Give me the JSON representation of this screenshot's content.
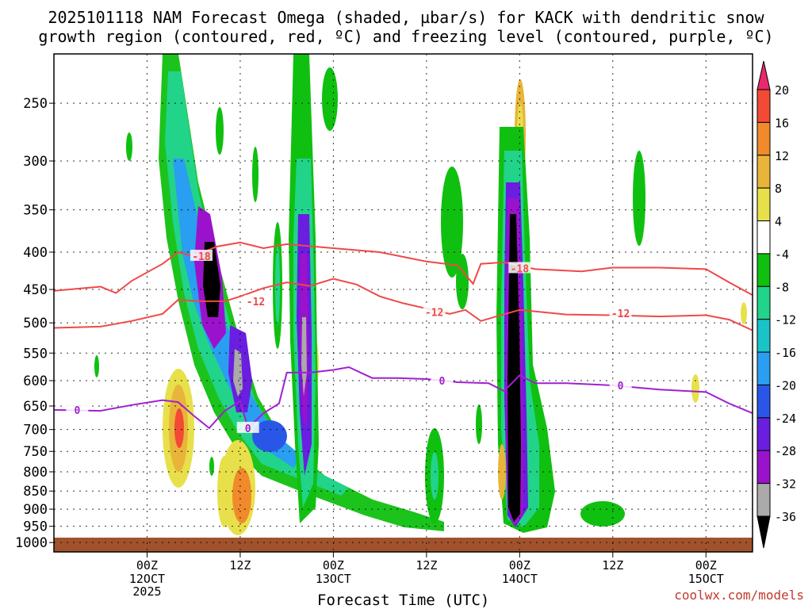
{
  "chart_data": {
    "type": "heatmap",
    "title_line1": "2025101118 NAM Forecast Omega (shaded, µbar/s) for KACK with dendritic snow",
    "title_line2": "growth region (contoured, red, ºC) and freezing level (contoured, purple, ºC)",
    "xlabel": "Forecast Time (UTC)",
    "credit": "coolwx.com/models",
    "x_range_hours": [
      -6,
      60
    ],
    "x_ticks": [
      {
        "h": 0,
        "l1": "00Z",
        "l2": "12OCT",
        "l3": "2025"
      },
      {
        "h": 12,
        "l1": "12Z",
        "l2": "",
        "l3": ""
      },
      {
        "h": 24,
        "l1": "00Z",
        "l2": "13OCT",
        "l3": ""
      },
      {
        "h": 36,
        "l1": "12Z",
        "l2": "",
        "l3": ""
      },
      {
        "h": 48,
        "l1": "00Z",
        "l2": "14OCT",
        "l3": ""
      },
      {
        "h": 60,
        "l1": "12Z",
        "l2": "",
        "l3": ""
      },
      {
        "h": 72,
        "l1": "00Z",
        "l2": "15OCT",
        "l3": ""
      }
    ],
    "x_range_display": [
      -12,
      78
    ],
    "y_levels_hpa": [
      250,
      300,
      350,
      400,
      450,
      500,
      550,
      600,
      650,
      700,
      750,
      800,
      850,
      900,
      950,
      1000
    ],
    "y_range_hpa": [
      200,
      1025
    ],
    "colorbar": {
      "labels": [
        "20",
        "16",
        "12",
        "8",
        "4",
        "-4",
        "-8",
        "-12",
        "-16",
        "-20",
        "-24",
        "-28",
        "-32",
        "-36"
      ],
      "colors": [
        "#e8296e",
        "#f24a36",
        "#f08a2c",
        "#e8b53a",
        "#e8e04a",
        "#ffffff",
        "#10c010",
        "#22d38a",
        "#19c3c8",
        "#2a9ef0",
        "#2a56e8",
        "#6a1ee0",
        "#9b12cc",
        "#aaaaaa",
        "#000000"
      ]
    },
    "contours": [
      {
        "name": "-18C",
        "label": "-18",
        "color": "#f04848",
        "points": [
          [
            -12,
            452
          ],
          [
            -6,
            446
          ],
          [
            -4,
            455
          ],
          [
            -2,
            438
          ],
          [
            2,
            415
          ],
          [
            4,
            400
          ],
          [
            6,
            405
          ],
          [
            9,
            393
          ],
          [
            12,
            388
          ],
          [
            15,
            395
          ],
          [
            18,
            390
          ],
          [
            24,
            395
          ],
          [
            30,
            400
          ],
          [
            36,
            412
          ],
          [
            40,
            417
          ],
          [
            42,
            442
          ],
          [
            43,
            415
          ],
          [
            46,
            413
          ],
          [
            50,
            422
          ],
          [
            56,
            425
          ],
          [
            60,
            420
          ],
          [
            66,
            420
          ],
          [
            72,
            422
          ],
          [
            75,
            440
          ],
          [
            78,
            458
          ]
        ],
        "label_at": [
          [
            7,
            405
          ],
          [
            48,
            421
          ]
        ]
      },
      {
        "name": "-12C",
        "label": "-12",
        "color": "#f04848",
        "points": [
          [
            -12,
            508
          ],
          [
            -6,
            506
          ],
          [
            -2,
            497
          ],
          [
            2,
            486
          ],
          [
            4,
            465
          ],
          [
            7,
            467
          ],
          [
            10,
            467
          ],
          [
            12,
            460
          ],
          [
            15,
            448
          ],
          [
            18,
            440
          ],
          [
            21,
            445
          ],
          [
            24,
            435
          ],
          [
            27,
            443
          ],
          [
            30,
            460
          ],
          [
            33,
            470
          ],
          [
            36,
            478
          ],
          [
            39,
            486
          ],
          [
            41,
            480
          ],
          [
            43,
            497
          ],
          [
            45,
            490
          ],
          [
            48,
            480
          ],
          [
            54,
            487
          ],
          [
            60,
            488
          ],
          [
            66,
            490
          ],
          [
            72,
            488
          ],
          [
            75,
            495
          ],
          [
            78,
            512
          ]
        ],
        "label_at": [
          [
            14,
            467
          ],
          [
            37,
            483
          ],
          [
            61,
            485
          ]
        ]
      },
      {
        "name": "0C",
        "label": "0",
        "color": "#a020d0",
        "points": [
          [
            -12,
            658
          ],
          [
            -6,
            660
          ],
          [
            -2,
            648
          ],
          [
            2,
            638
          ],
          [
            4,
            642
          ],
          [
            6,
            670
          ],
          [
            8,
            697
          ],
          [
            10,
            660
          ],
          [
            12,
            640
          ],
          [
            13,
            697
          ],
          [
            15,
            665
          ],
          [
            17,
            645
          ],
          [
            18,
            585
          ],
          [
            21,
            585
          ],
          [
            24,
            580
          ],
          [
            26,
            575
          ],
          [
            29,
            595
          ],
          [
            32,
            595
          ],
          [
            36,
            597
          ],
          [
            40,
            603
          ],
          [
            44,
            605
          ],
          [
            46,
            620
          ],
          [
            48,
            590
          ],
          [
            50,
            605
          ],
          [
            54,
            605
          ],
          [
            60,
            609
          ],
          [
            66,
            617
          ],
          [
            72,
            622
          ],
          [
            75,
            645
          ],
          [
            78,
            665
          ]
        ],
        "label_at": [
          [
            -9,
            658
          ],
          [
            13,
            697
          ],
          [
            38,
            600
          ],
          [
            61,
            609
          ]
        ]
      }
    ]
  }
}
